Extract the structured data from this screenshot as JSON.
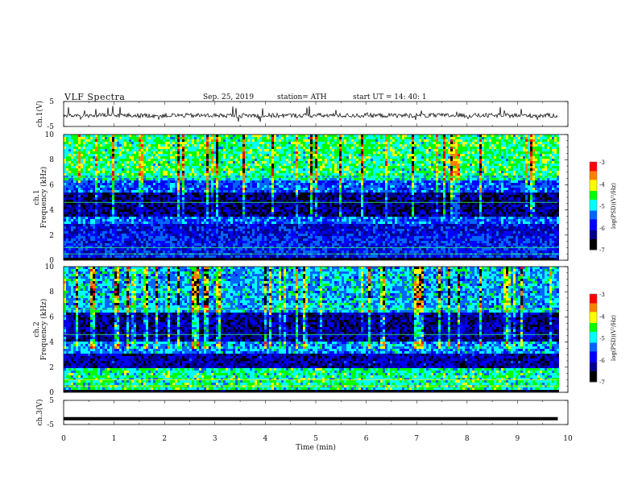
{
  "header": {
    "title": "VLF  Spectra",
    "date": "Sep. 25, 2019",
    "station": "station= ATH",
    "start": "start  UT  =    14: 40: 1"
  },
  "chart_data": [
    {
      "type": "line",
      "name": "ch1-waveform",
      "ylabel": "ch.1(V)",
      "yticks": [
        "5",
        "-5"
      ],
      "ylim": [
        -5,
        5
      ],
      "xlim": [
        0,
        10
      ],
      "xticks": [
        0,
        1,
        2,
        3,
        4,
        5,
        6,
        7,
        8,
        9,
        10
      ],
      "series": [
        {
          "noise_amplitude": 0.9,
          "spike_amplitude": 3.5,
          "end_minute": 9.8,
          "color": "#000000"
        }
      ]
    },
    {
      "type": "heatmap",
      "name": "ch1-spectrogram",
      "ylabel": "ch.1\nFrequency  (kHz)",
      "yticks": [
        "0",
        "2",
        "4",
        "6",
        "8",
        "10"
      ],
      "ylim": [
        0,
        10
      ],
      "xlim": [
        0,
        10
      ],
      "data_end_minute": 9.8,
      "frequency_bands_khz": [
        {
          "from": 0.0,
          "to": 0.3,
          "level": -7.0
        },
        {
          "from": 0.3,
          "to": 2.0,
          "level": -5.8
        },
        {
          "from": 2.0,
          "to": 3.0,
          "level": -6.0
        },
        {
          "from": 3.0,
          "to": 3.5,
          "level": -5.5
        },
        {
          "from": 3.5,
          "to": 5.5,
          "level": -6.4
        },
        {
          "from": 5.5,
          "to": 6.4,
          "level": -5.6
        },
        {
          "from": 6.4,
          "to": 6.8,
          "level": -5.0
        },
        {
          "from": 6.8,
          "to": 10.0,
          "level": -4.7
        }
      ],
      "colorbar": {
        "label": "log(PSD)(V²/Hz)",
        "ticks": [
          "-3",
          "-4",
          "-5",
          "-6",
          "-7"
        ],
        "range": [
          -7,
          -3
        ]
      }
    },
    {
      "type": "heatmap",
      "name": "ch2-spectrogram",
      "ylabel": "ch.2\nFrequency  (kHz)",
      "yticks": [
        "0",
        "2",
        "4",
        "6",
        "8",
        "10"
      ],
      "ylim": [
        0,
        10
      ],
      "xlim": [
        0,
        10
      ],
      "data_end_minute": 9.8,
      "frequency_bands_khz": [
        {
          "from": 0.0,
          "to": 0.3,
          "level": -7.0
        },
        {
          "from": 0.3,
          "to": 2.0,
          "level": -4.8
        },
        {
          "from": 2.0,
          "to": 3.2,
          "level": -6.2
        },
        {
          "from": 3.2,
          "to": 4.2,
          "level": -5.3
        },
        {
          "from": 4.2,
          "to": 6.4,
          "level": -6.3
        },
        {
          "from": 6.4,
          "to": 10.0,
          "level": -5.2
        }
      ],
      "colorbar": {
        "label": "log(PSD)(V²/Hz)",
        "ticks": [
          "-3",
          "-4",
          "-5",
          "-6",
          "-7"
        ],
        "range": [
          -7,
          -3
        ]
      }
    },
    {
      "type": "line",
      "name": "ch3-waveform",
      "ylabel": "ch.3(V)",
      "yticks": [
        "5",
        "-5"
      ],
      "ylim": [
        -5,
        5
      ],
      "xlim": [
        0,
        10
      ],
      "xticks": [
        0,
        1,
        2,
        3,
        4,
        5,
        6,
        7,
        8,
        9,
        10
      ],
      "xlabel": "Time  (min)",
      "series": [
        {
          "constant_value": -2.6,
          "end_minute": 9.8,
          "color": "#000000"
        }
      ]
    }
  ],
  "colormap": [
    "#000000",
    "#00008c",
    "#0000ff",
    "#0064ff",
    "#00ffff",
    "#00ff00",
    "#ffff00",
    "#ff8000",
    "#ff0000",
    "#ffffff"
  ]
}
